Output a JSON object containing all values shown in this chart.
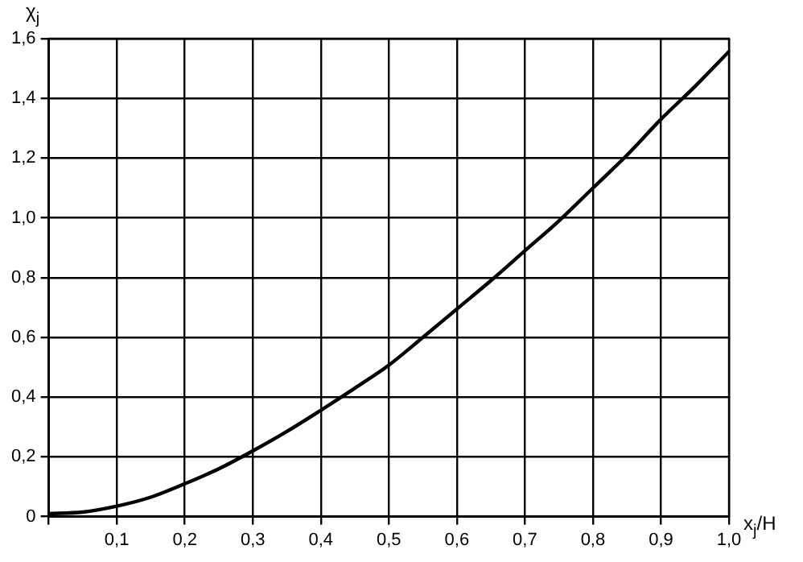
{
  "chart_data": {
    "type": "line",
    "xlabel": "x$_{j}$/H",
    "ylabel": "χ$_{j}$",
    "x": [
      0,
      0.05,
      0.1,
      0.15,
      0.2,
      0.25,
      0.3,
      0.35,
      0.4,
      0.45,
      0.5,
      0.55,
      0.6,
      0.65,
      0.7,
      0.75,
      0.8,
      0.85,
      0.9,
      0.95,
      1.0
    ],
    "series": [
      {
        "color": "#000000",
        "values": [
          0.01,
          0.015,
          0.035,
          0.065,
          0.11,
          0.16,
          0.22,
          0.285,
          0.356,
          0.43,
          0.507,
          0.6,
          0.695,
          0.79,
          0.89,
          0.99,
          1.1,
          1.21,
          1.33,
          1.44,
          1.557
        ]
      }
    ],
    "xlim": [
      0,
      1.0
    ],
    "ylim": [
      0,
      1.6
    ],
    "xticks": [
      {
        "value": 0,
        "label": null
      },
      {
        "value": 0.1,
        "label": "0,1"
      },
      {
        "value": 0.2,
        "label": "0,2"
      },
      {
        "value": 0.3,
        "label": "0,3"
      },
      {
        "value": 0.4,
        "label": "0,4"
      },
      {
        "value": 0.5,
        "label": "0,5"
      },
      {
        "value": 0.6,
        "label": "0,6"
      },
      {
        "value": 0.7,
        "label": "0,7"
      },
      {
        "value": 0.8,
        "label": "0,8"
      },
      {
        "value": 0.9,
        "label": "0,9"
      },
      {
        "value": 1.0,
        "label": "1,0"
      }
    ],
    "yticks": [
      0,
      {
        "value": 0.2,
        "label": "0,2"
      },
      {
        "value": 0.4,
        "label": "0,4"
      },
      {
        "value": 0.6,
        "label": "0,6"
      },
      {
        "value": 0.8,
        "label": "0,8"
      },
      {
        "value": 1.0,
        "label": "1,0"
      },
      {
        "value": 1.2,
        "label": "1,2"
      },
      {
        "value": 1.4,
        "label": "1,4"
      },
      {
        "value": 1.6,
        "label": "1,6"
      }
    ],
    "grid": true,
    "legend": false,
    "marker": "none",
    "line_style": "solid"
  }
}
